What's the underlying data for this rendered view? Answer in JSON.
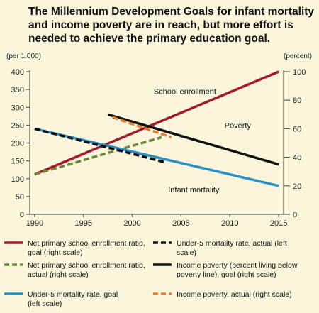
{
  "title_lines": [
    "The Millennium Development Goals for infant mortality",
    "and income poverty are in reach, but more effort is",
    "needed to achieve the primary education goal."
  ],
  "chart_data": {
    "type": "line",
    "left_unit": "(per 1,000)",
    "right_unit": "(percent)",
    "xlim": [
      1989.5,
      2015.5
    ],
    "xticks": [
      1990,
      1995,
      2000,
      2005,
      2010,
      2015
    ],
    "left_ylim": [
      0,
      400
    ],
    "left_yticks": [
      0,
      50,
      100,
      150,
      200,
      250,
      300,
      350,
      400
    ],
    "right_ylim": [
      0,
      100
    ],
    "right_yticks": [
      0,
      20,
      40,
      60,
      80,
      100
    ],
    "grid": false,
    "legend_placement": "bottom",
    "series": [
      {
        "name": "Net primary school enrollment ratio, goal (right scale)",
        "axis": "right",
        "color": "#a31a30",
        "dash": "solid",
        "x": [
          1990,
          2015
        ],
        "y": [
          28,
          100
        ]
      },
      {
        "name": "Net primary school enrollment ratio, actual (right scale)",
        "axis": "right",
        "color": "#6a8a3a",
        "dash": "dashed",
        "x": [
          1990,
          2003
        ],
        "y": [
          28,
          54
        ]
      },
      {
        "name": "Under-5 mortality rate, goal (left scale)",
        "axis": "left",
        "color": "#2a91c8",
        "dash": "solid",
        "x": [
          1990,
          2015
        ],
        "y": [
          240,
          80
        ]
      },
      {
        "name": "Under-5 mortality rate, actual (left scale)",
        "axis": "left",
        "color": "#111111",
        "dash": "dashed",
        "x": [
          1990,
          2003.5
        ],
        "y": [
          240,
          145
        ]
      },
      {
        "name": "Income poverty (percent living below poverty line), goal (right scale)",
        "axis": "right",
        "color": "#111111",
        "dash": "solid",
        "x": [
          1997.5,
          2015
        ],
        "y": [
          70,
          35
        ]
      },
      {
        "name": "Income poverty, actual (right scale)",
        "axis": "right",
        "color": "#e87a2c",
        "dash": "dashed",
        "x": [
          1998,
          2004
        ],
        "y": [
          68,
          54
        ]
      }
    ],
    "annotations": [
      {
        "text": "School enrollment",
        "x": 2005.4,
        "y_left": 345
      },
      {
        "text": "Poverty",
        "x": 2010.8,
        "y_left": 250
      },
      {
        "text": "Infant mortality",
        "x": 2006.3,
        "y_left": 70
      }
    ]
  }
}
